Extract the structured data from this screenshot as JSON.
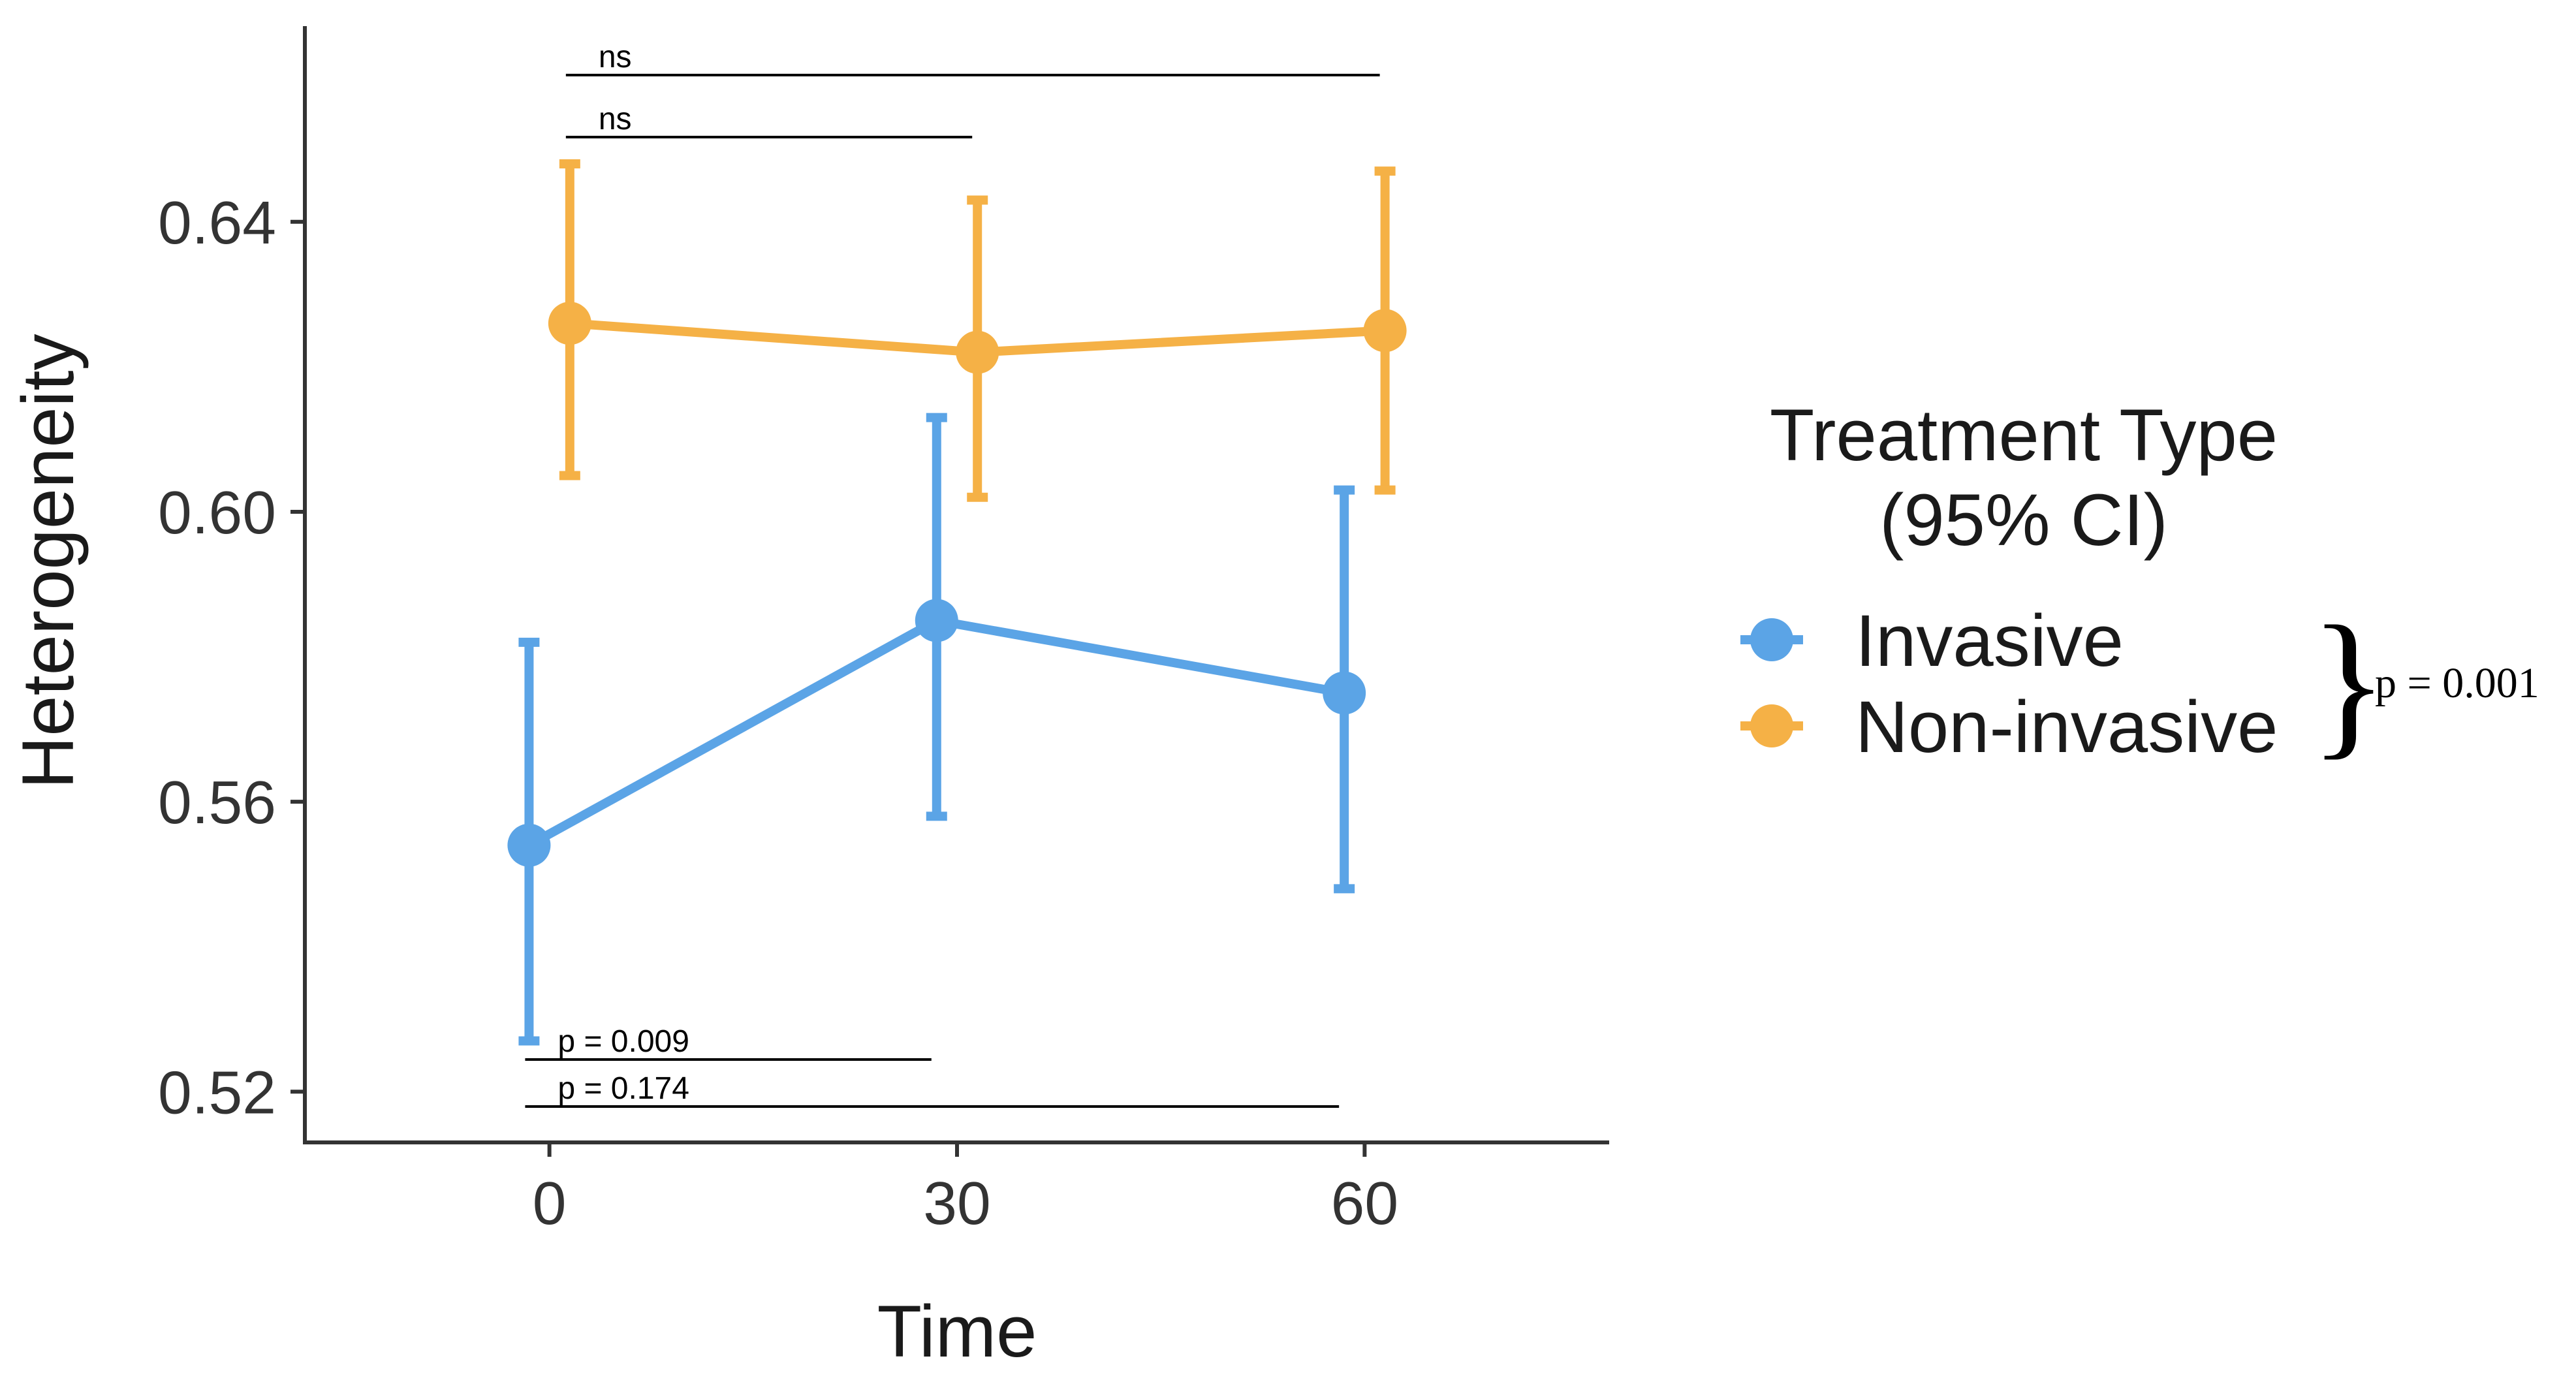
{
  "chart_data": {
    "type": "line",
    "title": "",
    "xlabel": "Time",
    "ylabel": "Heterogeneity",
    "x": [
      0,
      30,
      60
    ],
    "x_ticks": [
      "0",
      "30",
      "60"
    ],
    "y_ticks": [
      "0.52",
      "0.56",
      "0.60",
      "0.64"
    ],
    "y_tick_values": [
      0.52,
      0.56,
      0.6,
      0.64
    ],
    "xlim": [
      -18,
      78
    ],
    "ylim": [
      0.513,
      0.667
    ],
    "grid": false,
    "legend": {
      "title_line1": "Treatment Type",
      "title_line2": "(95% CI)",
      "placement": "right",
      "group_p_value": "p = 0.001"
    },
    "series": [
      {
        "name": "Invasive",
        "color": "#5ba4e6",
        "x_offset": -1.5,
        "values": [
          0.554,
          0.585,
          0.575
        ],
        "ci_low": [
          0.527,
          0.558,
          0.548
        ],
        "ci_high": [
          0.582,
          0.613,
          0.603
        ]
      },
      {
        "name": "Non-invasive",
        "color": "#f5b146",
        "x_offset": 1.5,
        "values": [
          0.626,
          0.622,
          0.625
        ],
        "ci_low": [
          0.605,
          0.602,
          0.603
        ],
        "ci_high": [
          0.648,
          0.643,
          0.647
        ]
      }
    ],
    "annotations": [
      {
        "label": "ns",
        "series": "Non-invasive",
        "from": 0,
        "to": 60,
        "level": 0
      },
      {
        "label": "ns",
        "series": "Non-invasive",
        "from": 0,
        "to": 30,
        "level": 1
      },
      {
        "label": "p = 0.009",
        "series": "Invasive",
        "from": 0,
        "to": 30,
        "level": 1
      },
      {
        "label": "p = 0.174",
        "series": "Invasive",
        "from": 0,
        "to": 60,
        "level": 0
      }
    ]
  }
}
